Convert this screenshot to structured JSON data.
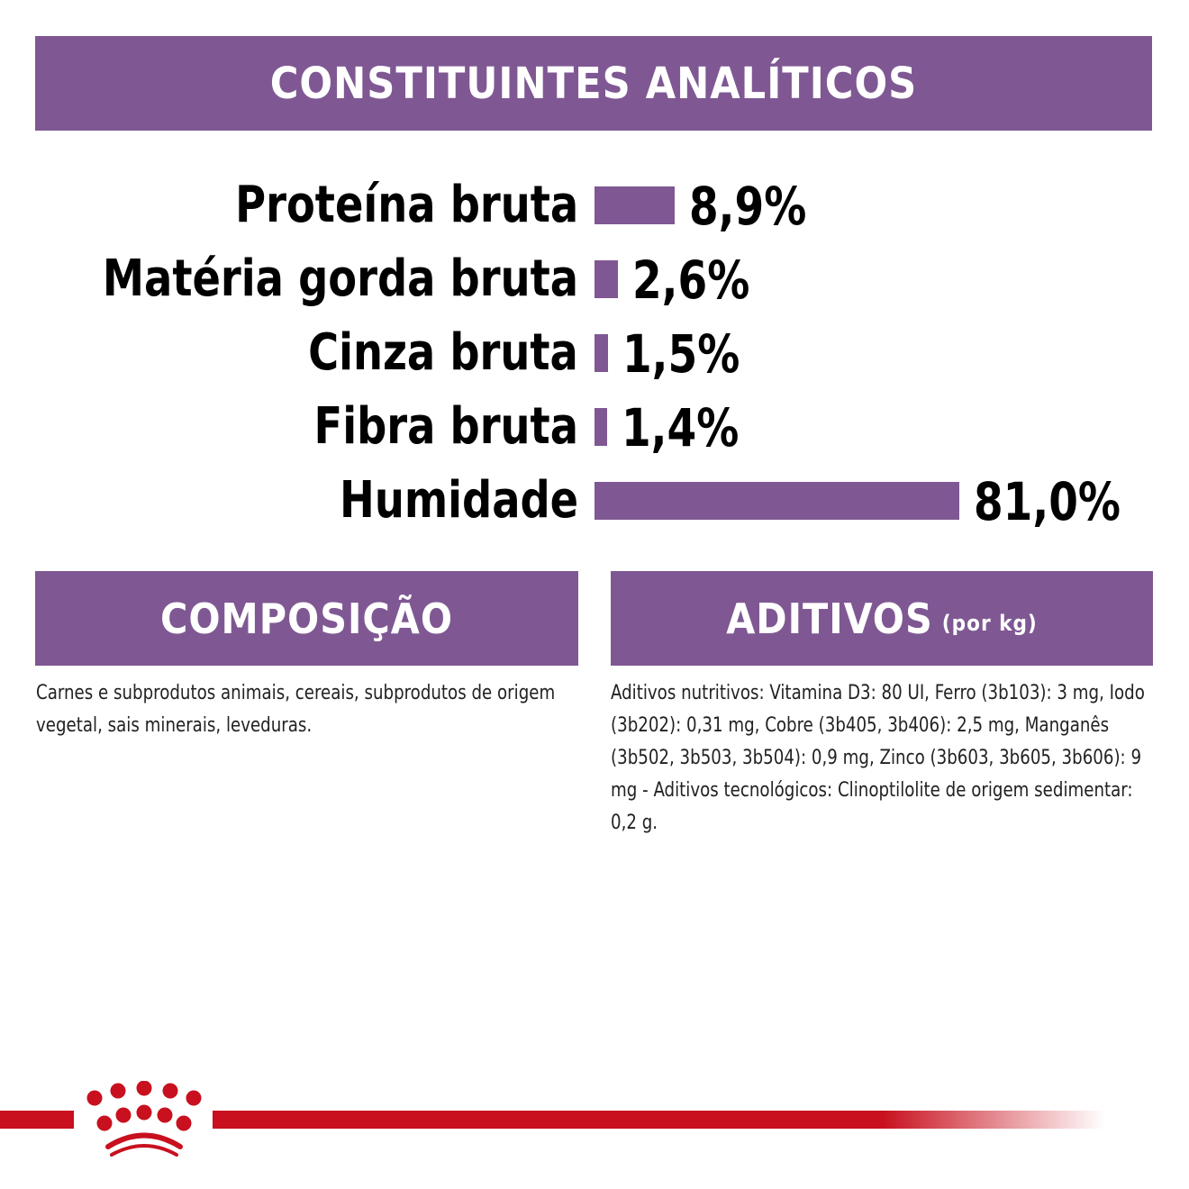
{
  "header": {
    "title": "CONSTITUINTES ANALÍTICOS"
  },
  "constituents": [
    {
      "label": "Proteína bruta",
      "value": 8.9,
      "text": "8,9%"
    },
    {
      "label": "Matéria gorda bruta",
      "value": 2.6,
      "text": "2,6%"
    },
    {
      "label": "Cinza bruta",
      "value": 1.5,
      "text": "1,5%"
    },
    {
      "label": "Fibra bruta",
      "value": 1.4,
      "text": "1,4%"
    },
    {
      "label": "Humidade",
      "value": 81.0,
      "text": "81,0%"
    }
  ],
  "composition": {
    "title": "COMPOSIÇÃO",
    "text": "Carnes e subprodutos animais, cereais, subprodutos de origem vegetal, sais minerais, leveduras."
  },
  "additives": {
    "title": "ADITIVOS",
    "unit": "(por kg)",
    "text": "Aditivos nutritivos: Vitamina D3: 80 UI, Ferro (3b103): 3 mg, Iodo (3b202): 0,31 mg, Cobre (3b405, 3b406): 2,5 mg, Manganês (3b502, 3b503, 3b504): 0,9 mg, Zinco (3b603, 3b605, 3b606): 9 mg - Aditivos tecnológicos: Clinoptilolite de origem sedimentar: 0,2 g."
  },
  "colors": {
    "purple": "#7f5893",
    "red": "#c8101e"
  },
  "logo": {
    "name": "royal-canin-crown"
  }
}
